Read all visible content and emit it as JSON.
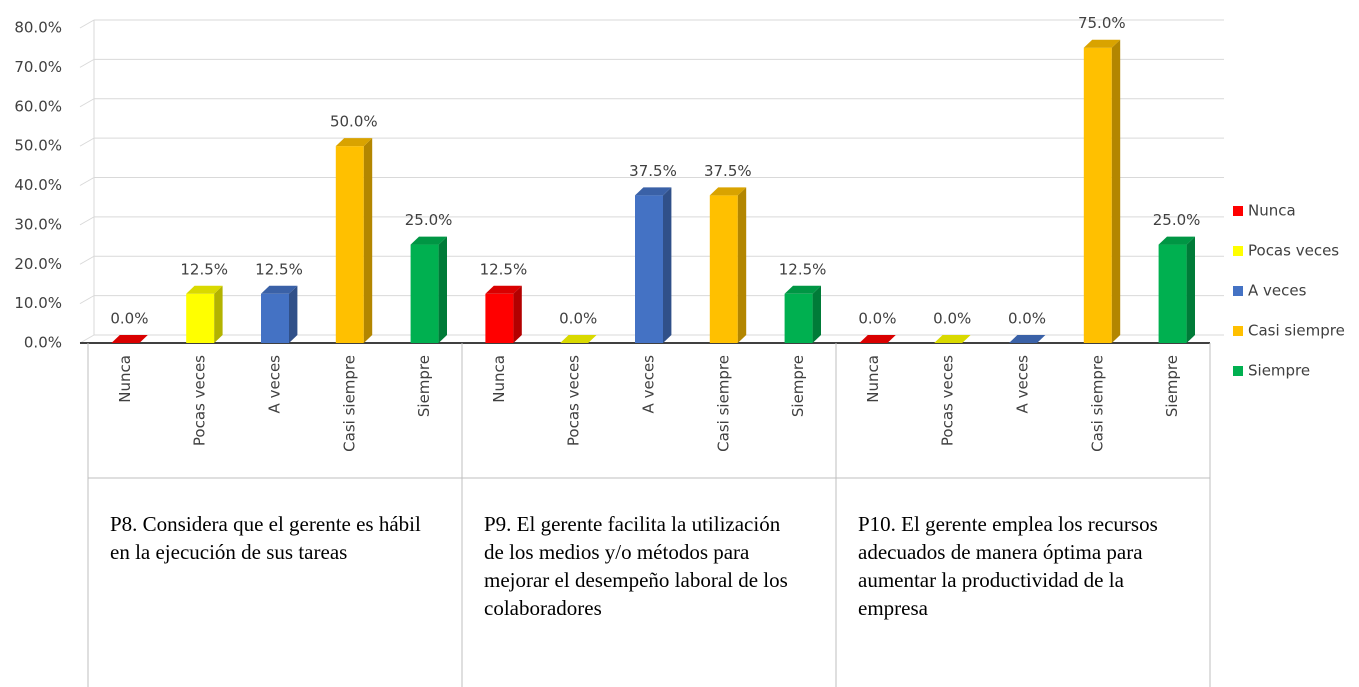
{
  "chart_data": {
    "type": "bar3d",
    "categories": [
      "P8. Considera que el gerente es hábil en la ejecución de sus tareas",
      "P9. El gerente facilita la utilización de los medios y/o métodos para mejorar el desempeño laboral de los colaboradores",
      "P10. El gerente emplea los recursos adecuados de manera óptima para aumentar la productividad de la empresa"
    ],
    "series": [
      {
        "name": "Nunca",
        "color": "#ff0000",
        "values": [
          0,
          12.5,
          0
        ],
        "value_labels": [
          "0.0%",
          "12.5%",
          "0.0%"
        ]
      },
      {
        "name": "Pocas veces",
        "color": "#ffff00",
        "values": [
          12.5,
          0,
          0
        ],
        "value_labels": [
          "12.5%",
          "0.0%",
          "0.0%"
        ]
      },
      {
        "name": "A veces",
        "color": "#4472c4",
        "values": [
          12.5,
          37.5,
          0
        ],
        "value_labels": [
          "12.5%",
          "37.5%",
          "0.0%"
        ]
      },
      {
        "name": "Casi siempre",
        "color": "#ffc000",
        "values": [
          50,
          37.5,
          75
        ],
        "value_labels": [
          "50.0%",
          "37.5%",
          "75.0%"
        ]
      },
      {
        "name": "Siempre",
        "color": "#00b050",
        "values": [
          25,
          12.5,
          25
        ],
        "value_labels": [
          "25.0%",
          "12.5%",
          "25.0%"
        ]
      }
    ],
    "ylim": [
      0,
      80
    ],
    "yticks": [
      {
        "value": 0,
        "label": "0.0%"
      },
      {
        "value": 10,
        "label": "10.0%"
      },
      {
        "value": 20,
        "label": "20.0%"
      },
      {
        "value": 30,
        "label": "30.0%"
      },
      {
        "value": 40,
        "label": "40.0%"
      },
      {
        "value": 50,
        "label": "50.0%"
      },
      {
        "value": 60,
        "label": "60.0%"
      },
      {
        "value": 70,
        "label": "70.0%"
      },
      {
        "value": 80,
        "label": "80.0%"
      }
    ],
    "grid": true,
    "legend": "right"
  }
}
